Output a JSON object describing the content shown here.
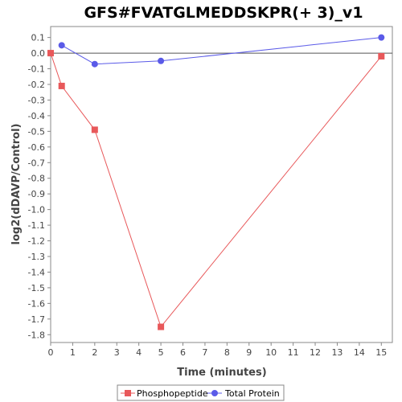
{
  "chart_data": {
    "type": "line",
    "title": "GFS#FVATGLMEDDSKPR(+ 3)_v1",
    "xlabel": "Time (minutes)",
    "ylabel": "log2(dDAVP/Control)",
    "xlim": [
      0,
      15.5
    ],
    "ylim": [
      -1.85,
      0.17
    ],
    "x_ticks": [
      "0",
      "1",
      "2",
      "3",
      "4",
      "5",
      "6",
      "7",
      "8",
      "9",
      "10",
      "11",
      "12",
      "13",
      "14",
      "15"
    ],
    "y_ticks": [
      "0.1",
      "0.0",
      "-0.1",
      "-0.2",
      "-0.3",
      "-0.4",
      "-0.5",
      "-0.6",
      "-0.7",
      "-0.8",
      "-0.9",
      "-1.0",
      "-1.1",
      "-1.2",
      "-1.3",
      "-1.4",
      "-1.5",
      "-1.6",
      "-1.7",
      "-1.8"
    ],
    "grid": false,
    "zero_line": true,
    "legend_position": "bottom",
    "series": [
      {
        "name": "Phosphopeptide",
        "color": "#e8585a",
        "marker": "square",
        "x": [
          0,
          0.5,
          2,
          5,
          15
        ],
        "y": [
          0.0,
          -0.21,
          -0.49,
          -1.75,
          -0.02
        ]
      },
      {
        "name": "Total Protein",
        "color": "#5a5ae8",
        "marker": "circle",
        "x": [
          0.5,
          2,
          5,
          15
        ],
        "y": [
          0.05,
          -0.07,
          -0.05,
          0.1
        ]
      }
    ]
  }
}
